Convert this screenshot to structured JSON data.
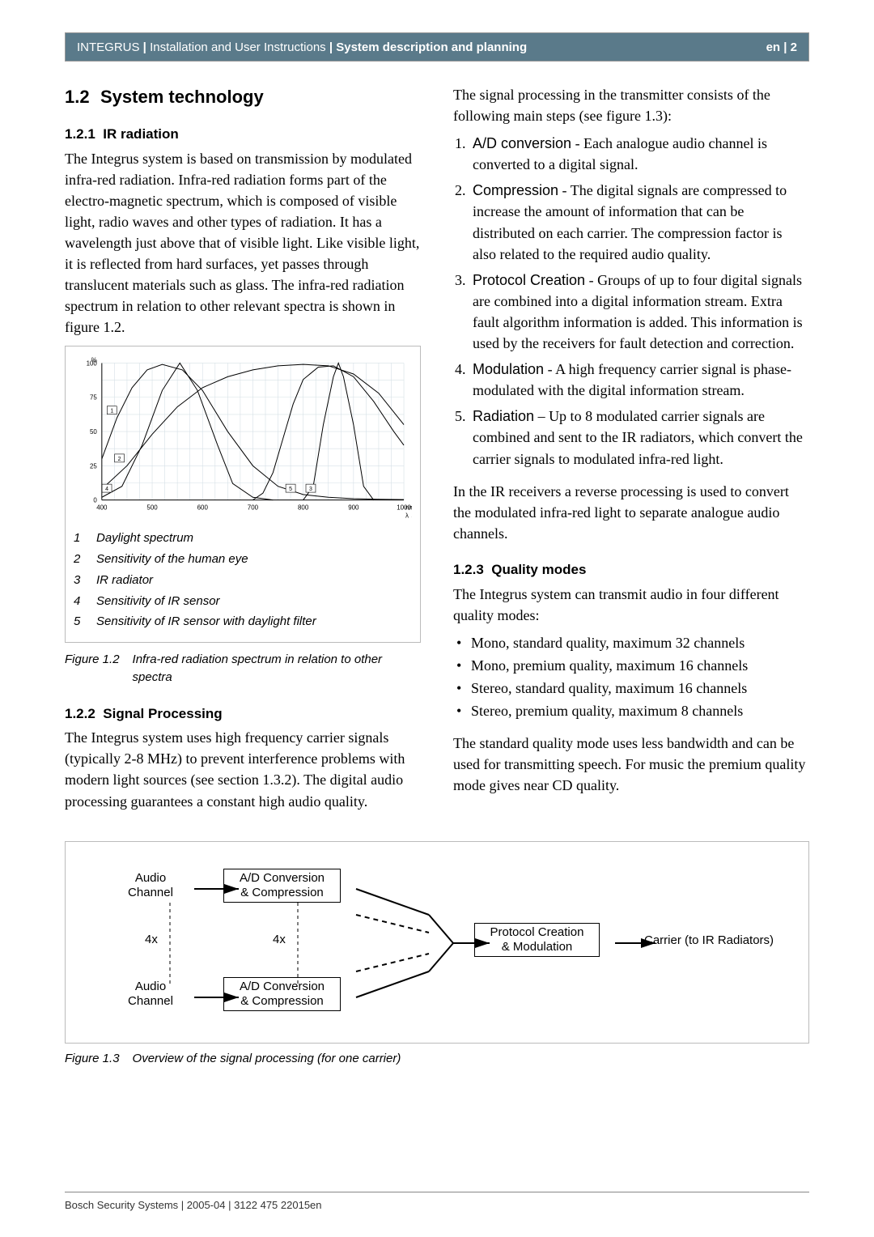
{
  "header": {
    "brand": "INTEGRUS",
    "pipe": " | ",
    "mid": "Installation and User Instructions",
    "right_section": "System description and planning",
    "lang": "en",
    "page": "2"
  },
  "sec12": {
    "num": "1.2",
    "title": "System technology"
  },
  "sec121": {
    "num": "1.2.1",
    "title": "IR radiation",
    "body": "The Integrus system is based on transmission by modulated infra-red radiation. Infra-red radiation forms part of the electro-magnetic spectrum, which is composed of visible light, radio waves and other types of radiation. It has a wavelength just above that of visible light. Like visible light, it is reflected from hard surfaces, yet passes through translucent materials such as glass. The infra-red radiation spectrum in relation to other relevant spectra is shown in figure 1.2."
  },
  "fig12": {
    "legend": [
      {
        "k": "1",
        "t": "Daylight spectrum"
      },
      {
        "k": "2",
        "t": "Sensitivity of the human eye"
      },
      {
        "k": "3",
        "t": "IR radiator"
      },
      {
        "k": "4",
        "t": "Sensitivity of IR sensor"
      },
      {
        "k": "5",
        "t": "Sensitivity of IR sensor with daylight filter"
      }
    ],
    "cap_label": "Figure 1.2",
    "cap_text": "Infra-red radiation spectrum in relation to other spectra",
    "chart": {
      "xlim": [
        400,
        1000
      ],
      "ylim": [
        0,
        100
      ],
      "xticks": [
        400,
        500,
        600,
        700,
        800,
        900,
        1000
      ],
      "yticks": [
        0,
        25,
        50,
        75,
        100
      ],
      "ylabel": "%",
      "xlabel_right": "nm",
      "lambda": "λ →",
      "grid_color": "#d6e0e6",
      "axis_color": "#000000",
      "bg": "#ffffff",
      "curves": {
        "c1": {
          "label_x": 420,
          "label_y": 65,
          "pts": [
            [
              400,
              30
            ],
            [
              430,
              60
            ],
            [
              460,
              82
            ],
            [
              490,
              95
            ],
            [
              520,
              99
            ],
            [
              560,
              95
            ],
            [
              600,
              80
            ],
            [
              650,
              50
            ],
            [
              700,
              25
            ],
            [
              750,
              10
            ],
            [
              800,
              4
            ],
            [
              850,
              2
            ],
            [
              900,
              1
            ],
            [
              950,
              0.5
            ],
            [
              1000,
              0.3
            ]
          ]
        },
        "c2": {
          "label_x": 435,
          "label_y": 30,
          "pts": [
            [
              400,
              2
            ],
            [
              440,
              10
            ],
            [
              480,
              40
            ],
            [
              520,
              80
            ],
            [
              555,
              100
            ],
            [
              590,
              80
            ],
            [
              630,
              40
            ],
            [
              660,
              12
            ],
            [
              700,
              2
            ],
            [
              740,
              0
            ]
          ]
        },
        "c3": {
          "label_x": 815,
          "label_y": 8,
          "pts": [
            [
              800,
              0
            ],
            [
              820,
              10
            ],
            [
              840,
              55
            ],
            [
              860,
              90
            ],
            [
              870,
              100
            ],
            [
              880,
              90
            ],
            [
              900,
              55
            ],
            [
              920,
              10
            ],
            [
              940,
              0
            ]
          ]
        },
        "c4": {
          "label_x": 410,
          "label_y": 8,
          "pts": [
            [
              400,
              8
            ],
            [
              450,
              25
            ],
            [
              500,
              48
            ],
            [
              550,
              68
            ],
            [
              600,
              82
            ],
            [
              650,
              90
            ],
            [
              700,
              95
            ],
            [
              750,
              98
            ],
            [
              800,
              99
            ],
            [
              850,
              98
            ],
            [
              900,
              92
            ],
            [
              950,
              78
            ],
            [
              1000,
              55
            ]
          ]
        },
        "c5": {
          "label_x": 775,
          "label_y": 8,
          "pts": [
            [
              700,
              0
            ],
            [
              720,
              5
            ],
            [
              740,
              20
            ],
            [
              760,
              45
            ],
            [
              780,
              70
            ],
            [
              800,
              88
            ],
            [
              830,
              97
            ],
            [
              860,
              98
            ],
            [
              900,
              90
            ],
            [
              940,
              72
            ],
            [
              980,
              50
            ],
            [
              1000,
              40
            ]
          ]
        }
      }
    }
  },
  "sec122": {
    "num": "1.2.2",
    "title": "Signal Processing",
    "body": "The Integrus system uses high frequency carrier signals (typically 2-8 MHz) to prevent interference problems with modern light sources (see section 1.3.2). The digital audio processing guarantees a constant high audio quality."
  },
  "rightcol": {
    "intro": "The signal processing in the transmitter consists of the following main steps (see figure 1.3):",
    "steps": [
      {
        "term": "A/D conversion",
        "rest": " - Each analogue audio channel is converted to a digital signal."
      },
      {
        "term": "Compression",
        "rest": " - The digital signals are compressed to increase the amount of information that can be distributed on each carrier. The compression factor is also related to the required audio quality."
      },
      {
        "term": "Protocol Creation",
        "rest": " - Groups of up to four digital signals are combined into a digital information stream. Extra fault algorithm information is added. This information is used by the receivers for fault detection and correction."
      },
      {
        "term": "Modulation",
        "rest": " - A high frequency carrier signal is phase-modulated with the digital information stream."
      },
      {
        "term": "Radiation",
        "rest": " – Up to 8 modulated carrier signals are combined and sent to the IR radiators, which convert the carrier signals to modulated infra-red light."
      }
    ],
    "after": "In the IR receivers a reverse processing is used to convert the modulated infra-red light to separate analogue audio channels."
  },
  "sec123": {
    "num": "1.2.3",
    "title": "Quality modes",
    "lead": "The Integrus system can transmit audio in four different quality modes:",
    "items": [
      "Mono, standard quality, maximum 32 channels",
      "Mono, premium quality, maximum 16 channels",
      "Stereo, standard quality, maximum 16 channels",
      "Stereo, premium quality, maximum 8 channels"
    ],
    "tail": "The standard quality mode uses less bandwidth and can be used for transmitting speech. For music the premium quality mode gives near CD quality."
  },
  "fig13": {
    "audio_channel": "Audio\nChannel",
    "ad_box": "A/D Conversion\n& Compression",
    "four_x": "4x",
    "proto_box": "Protocol Creation\n& Modulation",
    "carrier": "Carrier (to IR Radiators)",
    "cap_label": "Figure 1.3",
    "cap_text": "Overview of the signal processing (for one carrier)"
  },
  "footer": "Bosch Security Systems | 2005-04 | 3122 475 22015en"
}
